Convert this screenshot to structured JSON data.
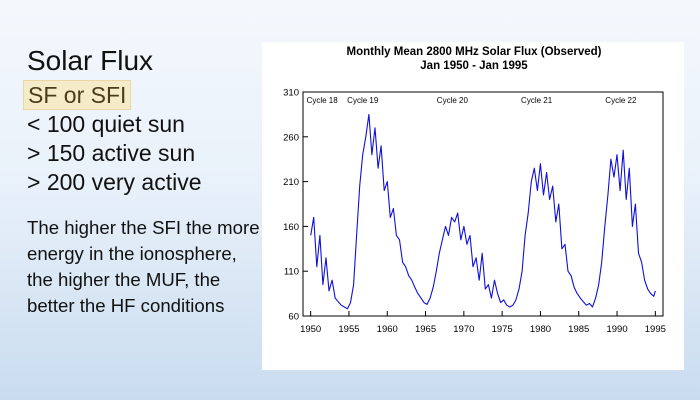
{
  "slide": {
    "title": "Solar Flux",
    "highlight": "SF or SFI",
    "bullets": [
      "< 100 quiet sun",
      "> 150 active sun",
      "> 200 very active"
    ],
    "paragraph": "The higher the SFI the more energy in the ionosphere, the higher the MUF, the better the HF conditions"
  },
  "colors": {
    "line": "#1010d8",
    "highlight_bg": "#f6ebc9"
  },
  "chart_data": {
    "type": "line",
    "title": "Monthly Mean 2800 MHz Solar Flux (Observed)",
    "subtitle": "Jan 1950 - Jan 1995",
    "xlabel": "",
    "ylabel": "",
    "xlim": [
      1949,
      1996
    ],
    "ylim": [
      60,
      310
    ],
    "xticks": [
      "1950",
      "1955",
      "1960",
      "1965",
      "1970",
      "1975",
      "1980",
      "1985",
      "1990",
      "1995"
    ],
    "yticks": [
      "60",
      "110",
      "160",
      "210",
      "260",
      "310"
    ],
    "annotations": [
      {
        "text": "Cycle 18",
        "x": 1951.5
      },
      {
        "text": "Cycle 19",
        "x": 1956.8
      },
      {
        "text": "Cycle 20",
        "x": 1968.5
      },
      {
        "text": "Cycle 21",
        "x": 1979.5
      },
      {
        "text": "Cycle 22",
        "x": 1990.5
      }
    ],
    "grid": false,
    "series": [
      {
        "x": [
          1950.0,
          1950.4,
          1950.8,
          1951.2,
          1951.6,
          1952.0,
          1952.4,
          1952.8,
          1953.2,
          1953.6,
          1954.0,
          1954.4,
          1954.8,
          1955.2,
          1955.6,
          1956.0,
          1956.4,
          1956.8,
          1957.2,
          1957.6,
          1958.0,
          1958.4,
          1958.8,
          1959.2,
          1959.6,
          1960.0,
          1960.4,
          1960.8,
          1961.2,
          1961.6,
          1962.0,
          1962.4,
          1962.8,
          1963.2,
          1963.6,
          1964.0,
          1964.4,
          1964.8,
          1965.2,
          1965.6,
          1966.0,
          1966.4,
          1966.8,
          1967.2,
          1967.6,
          1968.0,
          1968.4,
          1968.8,
          1969.2,
          1969.6,
          1970.0,
          1970.4,
          1970.8,
          1971.2,
          1971.6,
          1972.0,
          1972.4,
          1972.8,
          1973.2,
          1973.6,
          1974.0,
          1974.4,
          1974.8,
          1975.2,
          1975.6,
          1976.0,
          1976.4,
          1976.8,
          1977.2,
          1977.6,
          1978.0,
          1978.4,
          1978.8,
          1979.2,
          1979.6,
          1980.0,
          1980.4,
          1980.8,
          1981.2,
          1981.6,
          1982.0,
          1982.4,
          1982.8,
          1983.2,
          1983.6,
          1984.0,
          1984.4,
          1984.8,
          1985.2,
          1985.6,
          1986.0,
          1986.4,
          1986.8,
          1987.2,
          1987.6,
          1988.0,
          1988.4,
          1988.8,
          1989.2,
          1989.6,
          1990.0,
          1990.4,
          1990.8,
          1991.2,
          1991.6,
          1992.0,
          1992.4,
          1992.8,
          1993.2,
          1993.6,
          1994.0,
          1994.4,
          1994.8,
          1995.0
        ],
        "values": [
          150,
          170,
          115,
          150,
          95,
          125,
          88,
          100,
          80,
          76,
          72,
          70,
          68,
          75,
          95,
          150,
          205,
          240,
          260,
          285,
          240,
          270,
          225,
          250,
          200,
          210,
          170,
          180,
          150,
          145,
          120,
          115,
          105,
          100,
          92,
          85,
          80,
          75,
          73,
          80,
          92,
          110,
          130,
          145,
          160,
          150,
          170,
          165,
          175,
          145,
          160,
          140,
          150,
          115,
          125,
          100,
          130,
          90,
          95,
          80,
          100,
          85,
          75,
          78,
          72,
          70,
          72,
          78,
          90,
          110,
          150,
          175,
          210,
          225,
          200,
          230,
          195,
          220,
          190,
          205,
          165,
          185,
          135,
          140,
          110,
          105,
          92,
          85,
          80,
          76,
          72,
          74,
          70,
          80,
          95,
          120,
          160,
          195,
          235,
          215,
          240,
          200,
          245,
          190,
          225,
          160,
          185,
          130,
          120,
          100,
          90,
          85,
          82,
          88
        ]
      }
    ]
  }
}
